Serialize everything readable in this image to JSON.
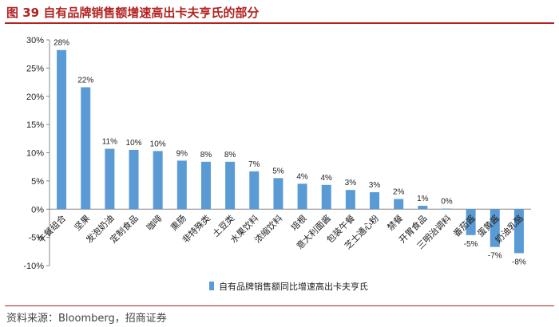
{
  "header": {
    "title": "图 39  自有品牌销售额增速高出卡夫亨氏的部分"
  },
  "footer": {
    "source": "资料来源：Bloomberg，招商证券"
  },
  "colors": {
    "bar": "#5b9bd5",
    "title": "#b22222",
    "axis": "#888888"
  },
  "chart_data": {
    "type": "bar",
    "title": "",
    "xlabel": "",
    "ylabel": "",
    "ylim": [
      -10,
      30
    ],
    "yticks": [
      30,
      25,
      20,
      15,
      10,
      5,
      0,
      -5,
      -10
    ],
    "ytick_labels": [
      "30%",
      "25%",
      "20%",
      "15%",
      "10%",
      "5%",
      "0%",
      "-5%",
      "-10%"
    ],
    "grid": false,
    "legend": "bottom-center",
    "categories": [
      "午餐组合",
      "坚果",
      "发泡奶油",
      "定制食品",
      "咖啡",
      "熏肠",
      "非特殊类",
      "土豆类",
      "水果饮料",
      "浓缩饮料",
      "培根",
      "意大利面酱",
      "包装午餐",
      "芝士通心粉",
      "禁餐",
      "开胃食品",
      "三明治调料",
      "番茄酱",
      "蛋黄酱",
      "奶油乳酪"
    ],
    "series": [
      {
        "name": "自有品牌销售额同比增速高出卡夫亨氏",
        "values": [
          28,
          22,
          11,
          10,
          10,
          9,
          8,
          8,
          7,
          5,
          4,
          4,
          3,
          3,
          2,
          1,
          0,
          -5,
          -7,
          -8
        ],
        "plotted": [
          28.2,
          21.6,
          10.7,
          10.5,
          10.3,
          8.6,
          8.4,
          8.4,
          6.7,
          5.5,
          4.5,
          4.3,
          3.4,
          3.0,
          1.8,
          0.6,
          0.1,
          -4.6,
          -6.7,
          -7.8
        ],
        "labels": [
          "28%",
          "22%",
          "11%",
          "10%",
          "10%",
          "9%",
          "8%",
          "8%",
          "7%",
          "5%",
          "4%",
          "4%",
          "3%",
          "3%",
          "2%",
          "1%",
          "0%",
          "-5%",
          "-7%",
          "-8%"
        ]
      }
    ]
  }
}
